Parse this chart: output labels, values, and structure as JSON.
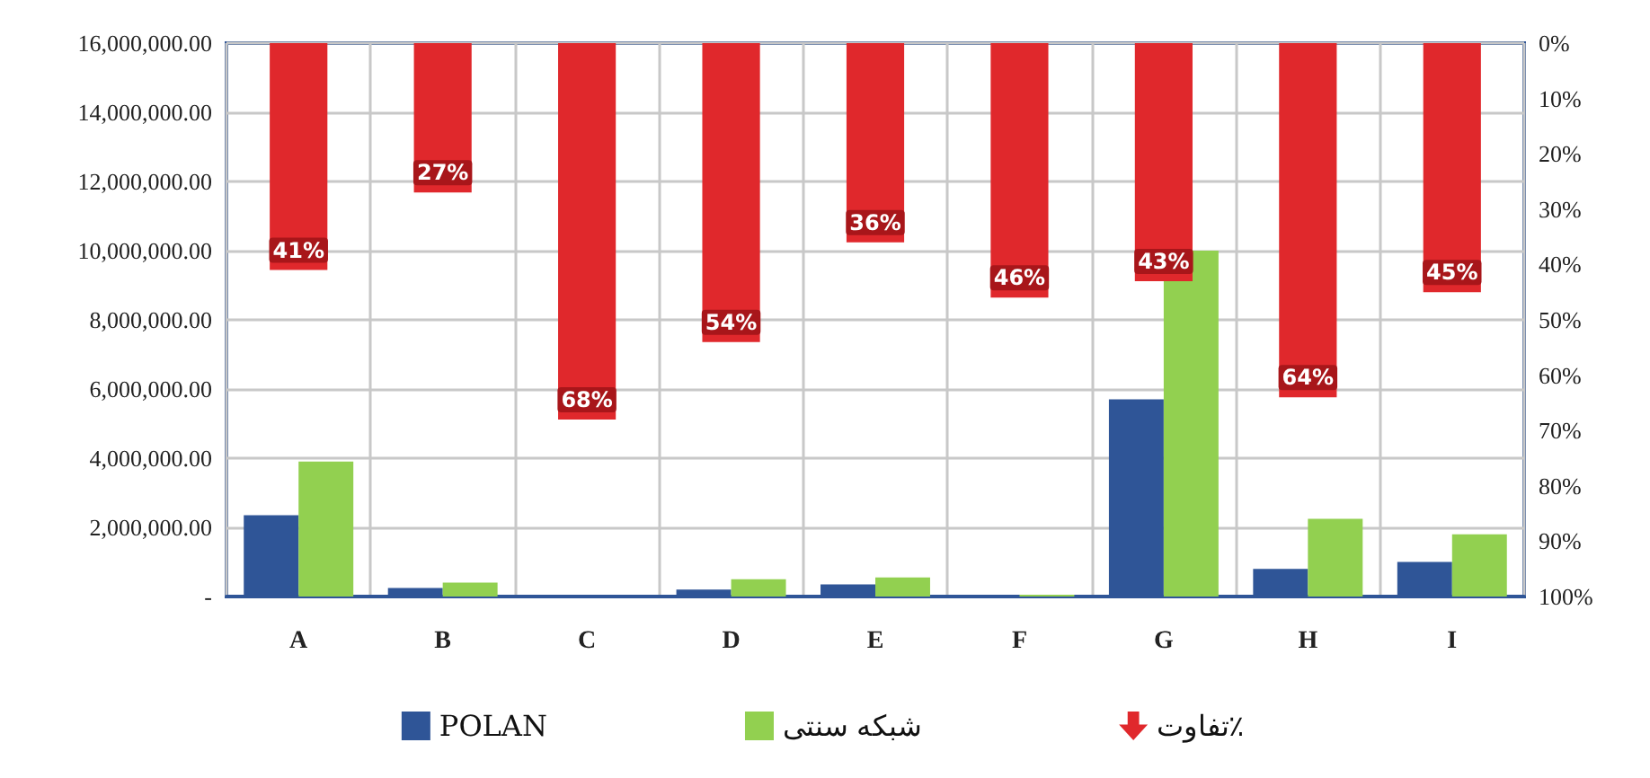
{
  "chart_data": {
    "type": "bar",
    "categories": [
      "A",
      "B",
      "C",
      "D",
      "E",
      "F",
      "G",
      "H",
      "I"
    ],
    "series": [
      {
        "name": "POLAN",
        "color": "#2f5597",
        "values": [
          2350000,
          250000,
          0,
          200000,
          350000,
          0,
          5700000,
          800000,
          1000000
        ]
      },
      {
        "name": "شبکه سنتی",
        "color": "#92d050",
        "values": [
          3900000,
          400000,
          0,
          500000,
          550000,
          50000,
          10000000,
          2250000,
          1800000
        ]
      },
      {
        "name": "تفاوت٪",
        "type": "bar",
        "axis": "y2",
        "color": "#e0282c",
        "values": [
          41,
          27,
          68,
          54,
          36,
          46,
          43,
          64,
          45
        ],
        "value_labels": [
          "41%",
          "27%",
          "68%",
          "54%",
          "36%",
          "46%",
          "43%",
          "64%",
          "45%"
        ]
      }
    ],
    "ylim": [
      0,
      16000000
    ],
    "yticks": [
      {
        "value": 0,
        "label": "-"
      },
      {
        "value": 2000000,
        "label": "2,000,000.00"
      },
      {
        "value": 4000000,
        "label": "4,000,000.00"
      },
      {
        "value": 6000000,
        "label": "6,000,000.00"
      },
      {
        "value": 8000000,
        "label": "8,000,000.00"
      },
      {
        "value": 10000000,
        "label": "10,000,000.00"
      },
      {
        "value": 12000000,
        "label": "12,000,000.00"
      },
      {
        "value": 14000000,
        "label": "14,000,000.00"
      },
      {
        "value": 16000000,
        "label": "16,000,000.00"
      }
    ],
    "y2lim": [
      100,
      0
    ],
    "y2ticks": [
      {
        "value": 0,
        "label": "0%"
      },
      {
        "value": 10,
        "label": "10%"
      },
      {
        "value": 20,
        "label": "20%"
      },
      {
        "value": 30,
        "label": "30%"
      },
      {
        "value": 40,
        "label": "40%"
      },
      {
        "value": 50,
        "label": "50%"
      },
      {
        "value": 60,
        "label": "60%"
      },
      {
        "value": 70,
        "label": "70%"
      },
      {
        "value": 80,
        "label": "80%"
      },
      {
        "value": 90,
        "label": "90%"
      },
      {
        "value": 100,
        "label": "100%"
      }
    ],
    "grid": true,
    "legend": "bottom"
  }
}
